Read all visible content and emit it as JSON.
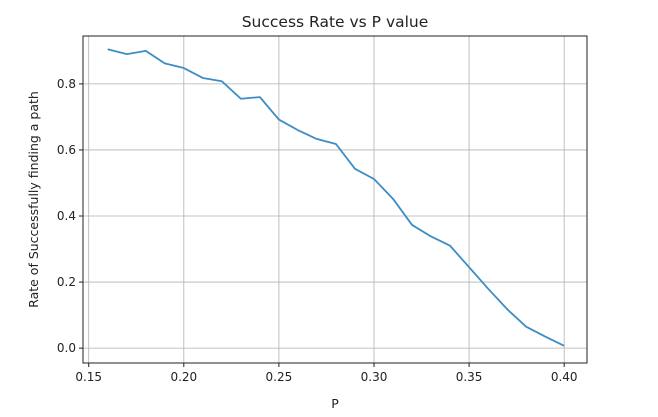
{
  "chart_data": {
    "type": "line",
    "title": "Success Rate vs P value",
    "xlabel": "P",
    "ylabel": "Rate of Successfully finding a path",
    "xlim": [
      0.147,
      0.412
    ],
    "ylim": [
      -0.045,
      0.945
    ],
    "xticks": [
      0.15,
      0.2,
      0.25,
      0.3,
      0.35,
      0.4
    ],
    "xtick_labels": [
      "0.15",
      "0.20",
      "0.25",
      "0.30",
      "0.35",
      "0.40"
    ],
    "yticks": [
      0.0,
      0.2,
      0.4,
      0.6,
      0.8
    ],
    "ytick_labels": [
      "0.0",
      "0.2",
      "0.4",
      "0.6",
      "0.8"
    ],
    "grid": true,
    "series": [
      {
        "name": "success rate",
        "color": "#3c8dc4",
        "x": [
          0.16,
          0.17,
          0.18,
          0.19,
          0.2,
          0.21,
          0.22,
          0.23,
          0.24,
          0.25,
          0.26,
          0.27,
          0.28,
          0.29,
          0.3,
          0.31,
          0.32,
          0.33,
          0.34,
          0.35,
          0.36,
          0.37,
          0.38,
          0.39,
          0.4
        ],
        "y": [
          0.905,
          0.89,
          0.9,
          0.862,
          0.848,
          0.818,
          0.808,
          0.755,
          0.76,
          0.692,
          0.66,
          0.633,
          0.618,
          0.543,
          0.512,
          0.452,
          0.373,
          0.338,
          0.31,
          0.245,
          0.18,
          0.118,
          0.065,
          0.035,
          0.007
        ]
      }
    ]
  }
}
